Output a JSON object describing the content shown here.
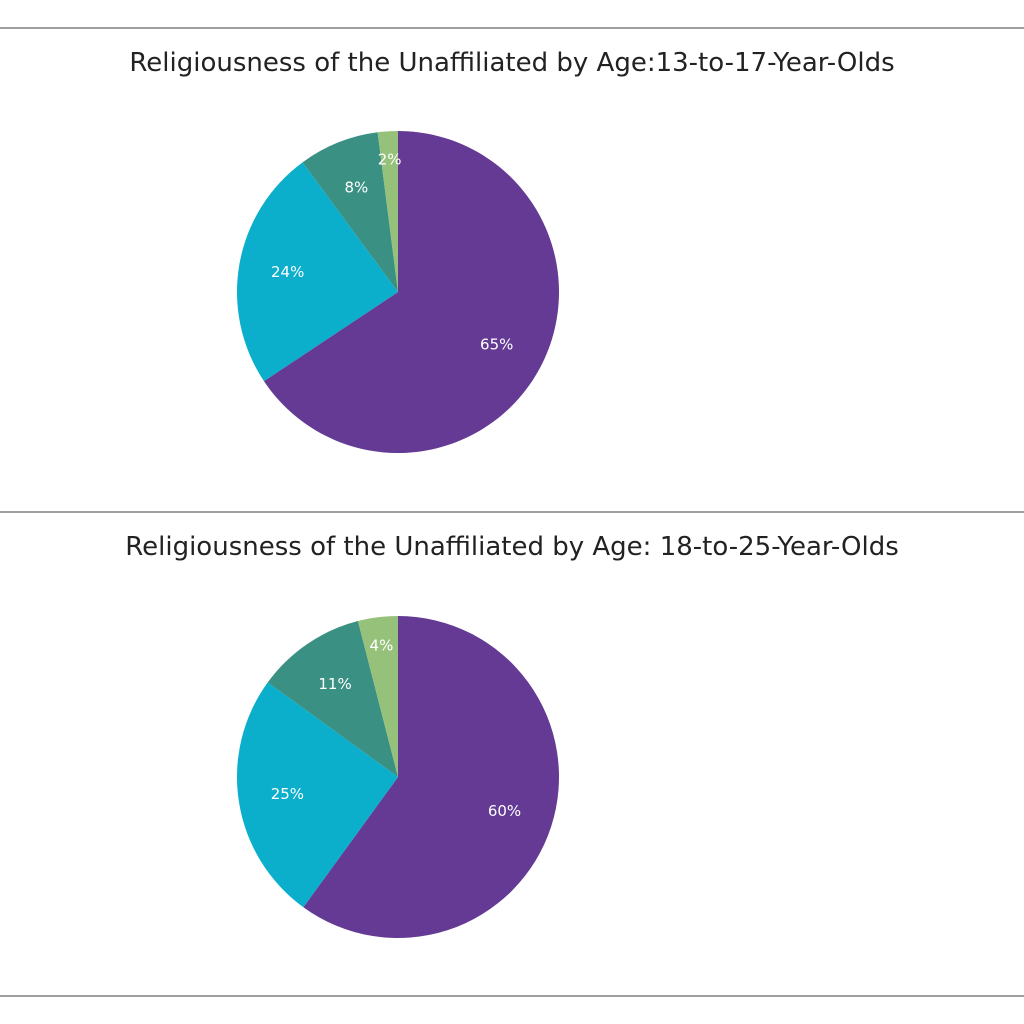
{
  "chart_data": [
    {
      "type": "pie",
      "title": "Religiousness of the Unaffiliated by Age:13-to-17-Year-Olds",
      "slices": [
        {
          "label": "65%",
          "value": 65,
          "color": "#643a94"
        },
        {
          "label": "24%",
          "value": 24,
          "color": "#0bafcb"
        },
        {
          "label": "8%",
          "value": 8,
          "color": "#3a9083"
        },
        {
          "label": "2%",
          "value": 2,
          "color": "#96c17a"
        }
      ]
    },
    {
      "type": "pie",
      "title": "Religiousness of the Unaffiliated by Age: 18-to-25-Year-Olds",
      "slices": [
        {
          "label": "60%",
          "value": 60,
          "color": "#643a94"
        },
        {
          "label": "25%",
          "value": 25,
          "color": "#0bafcb"
        },
        {
          "label": "11%",
          "value": 11,
          "color": "#3a9083"
        },
        {
          "label": "4%",
          "value": 4,
          "color": "#96c17a"
        }
      ]
    }
  ]
}
